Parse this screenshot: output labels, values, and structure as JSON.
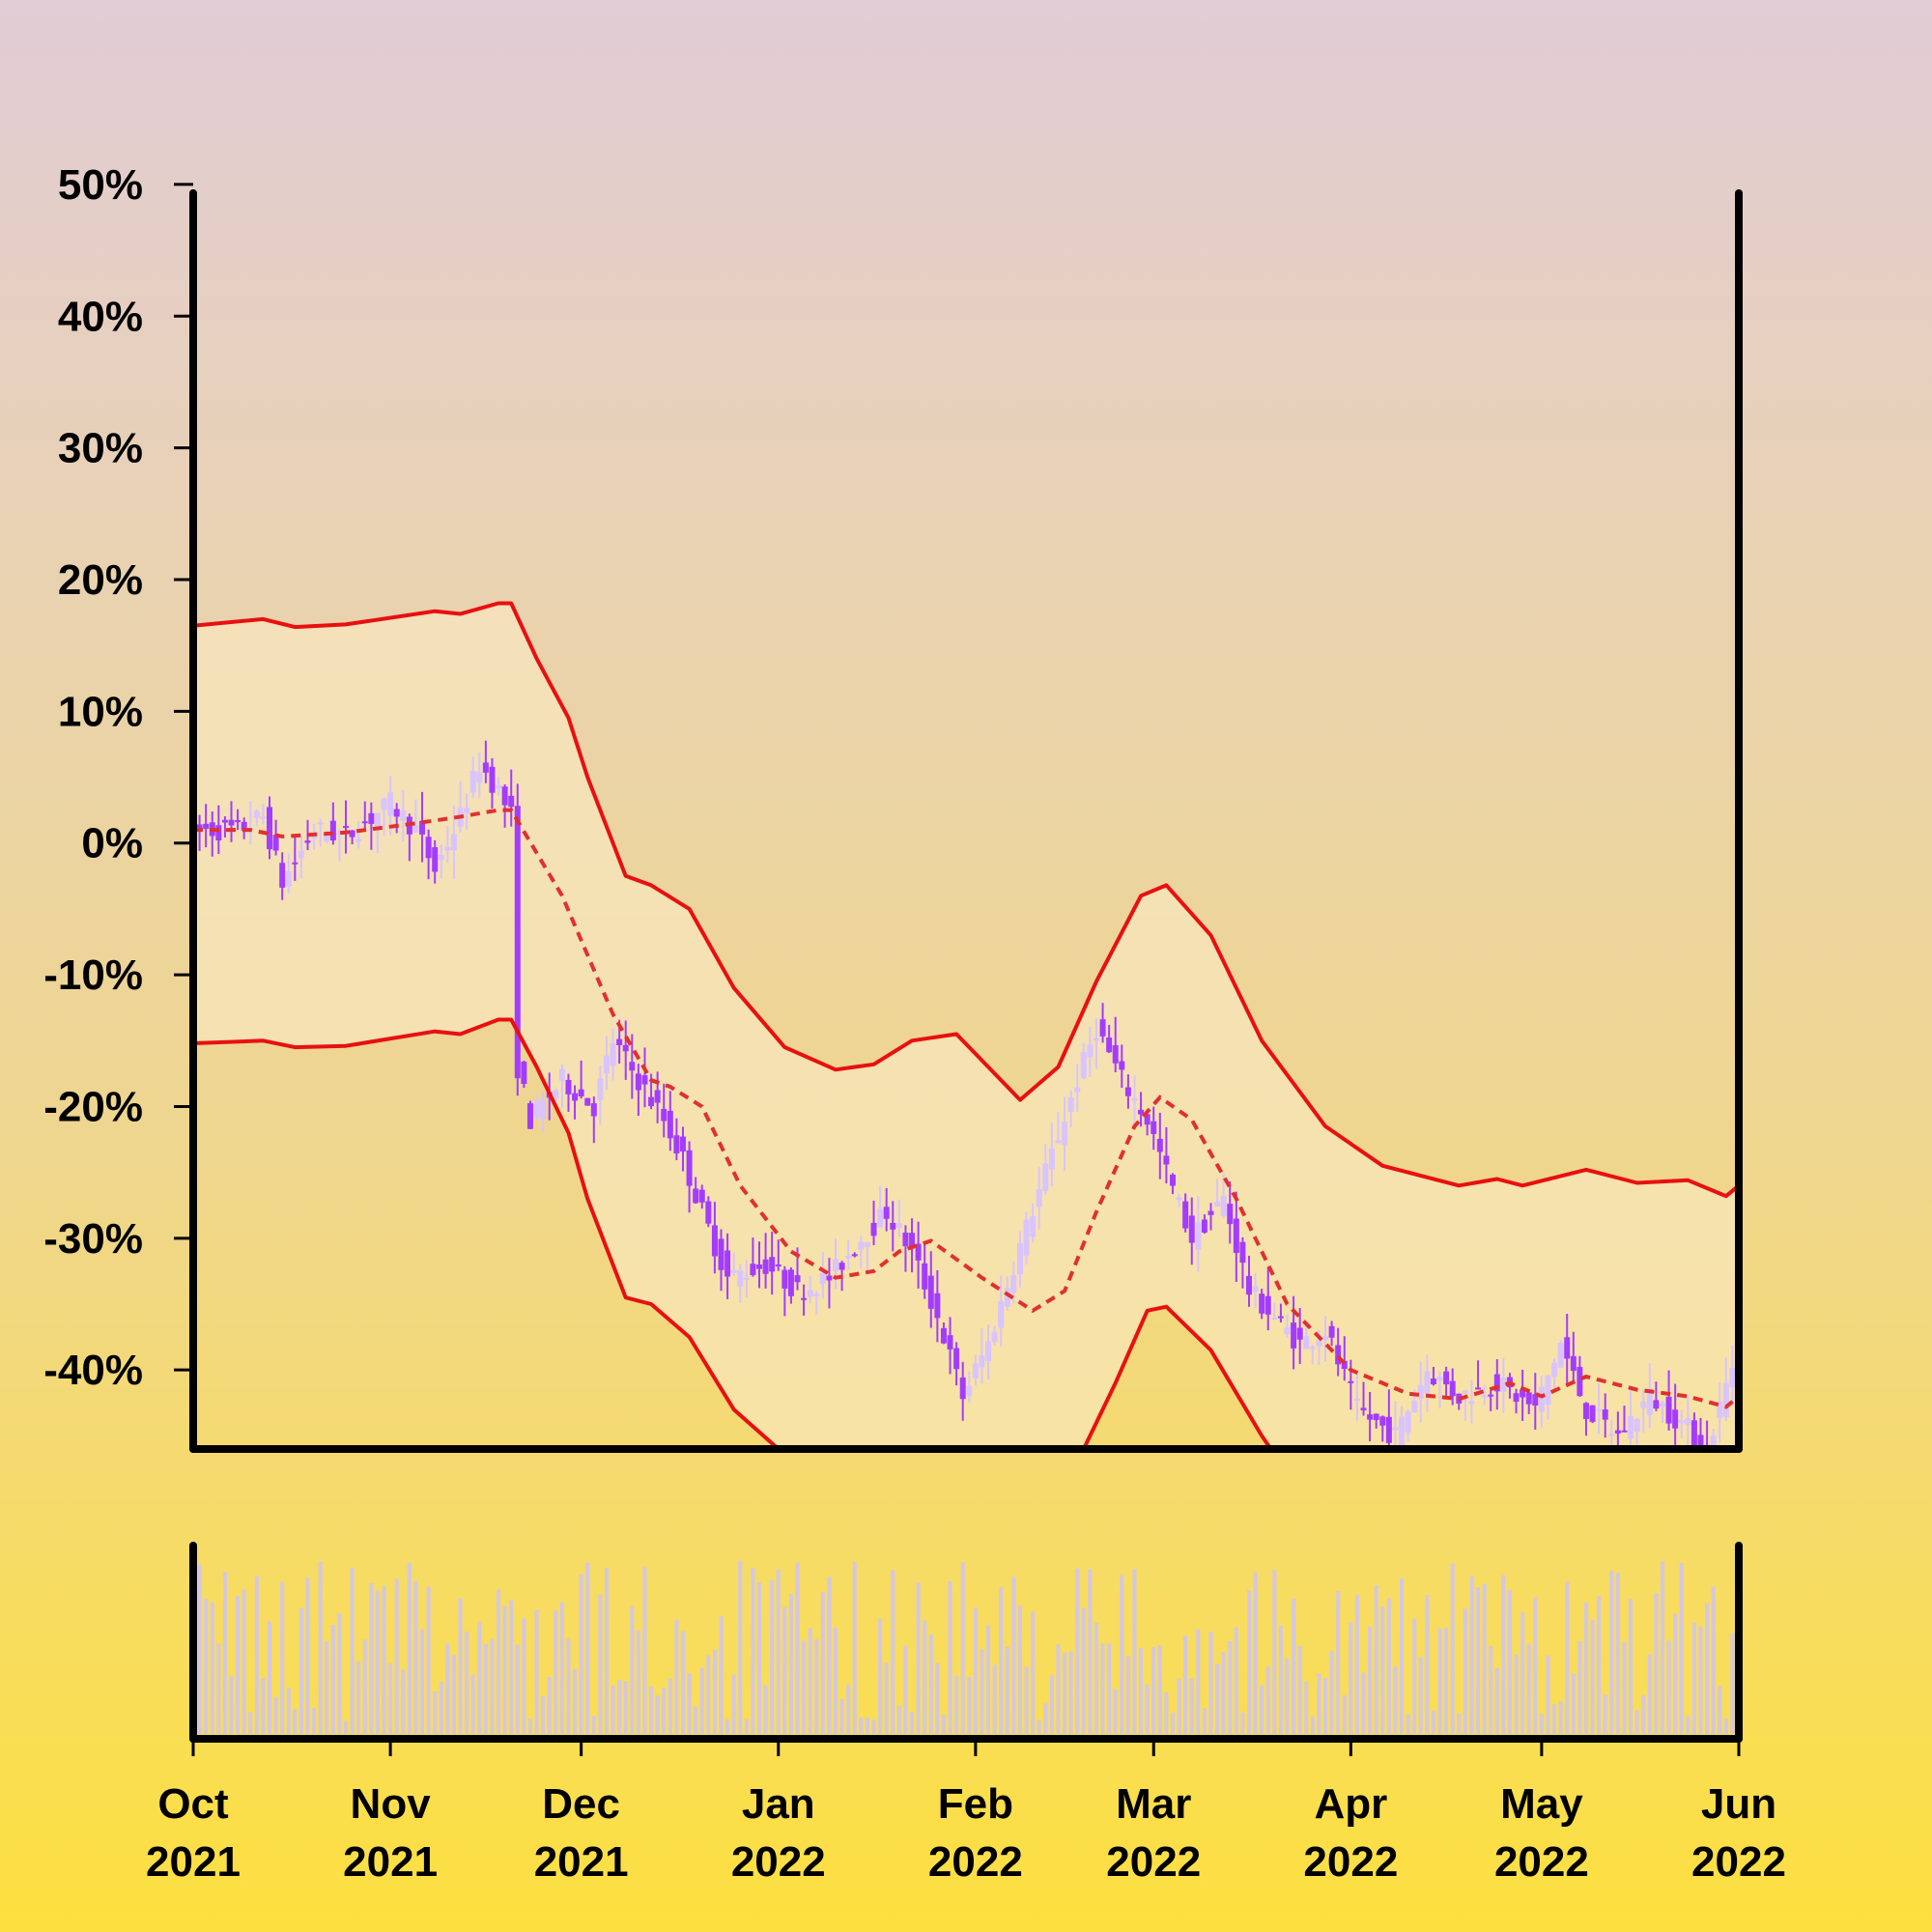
{
  "chart_data": {
    "type": "candlestick",
    "title": "",
    "xlabel": "",
    "ylabel": "",
    "y_unit": "%",
    "ylim": [
      -46,
      53
    ],
    "y_ticks": [
      50,
      40,
      30,
      20,
      10,
      0,
      -10,
      -20,
      -30,
      -40
    ],
    "y_tick_labels": [
      "50%",
      "40%",
      "30%",
      "20%",
      "10%",
      "0%",
      "-10%",
      "-20%",
      "-30%",
      "-40%"
    ],
    "x_range": [
      "2021-10-01",
      "2022-06-01"
    ],
    "x_ticks": [
      "2021-10-01",
      "2021-11-01",
      "2021-12-01",
      "2022-01-01",
      "2022-02-01",
      "2022-03-01",
      "2022-04-01",
      "2022-05-01",
      "2022-06-01"
    ],
    "x_tick_labels": [
      [
        "Oct",
        "2021"
      ],
      [
        "Nov",
        "2021"
      ],
      [
        "Dec",
        "2021"
      ],
      [
        "Jan",
        "2022"
      ],
      [
        "Feb",
        "2022"
      ],
      [
        "Mar",
        "2022"
      ],
      [
        "Apr",
        "2022"
      ],
      [
        "May",
        "2022"
      ],
      [
        "Jun",
        "2022"
      ]
    ],
    "price_path": [
      [
        "2021-10-01",
        1
      ],
      [
        "2021-10-08",
        1
      ],
      [
        "2021-10-12",
        2
      ],
      [
        "2021-10-15",
        -3
      ],
      [
        "2021-10-20",
        1
      ],
      [
        "2021-10-25",
        0.5
      ],
      [
        "2021-11-01",
        3
      ],
      [
        "2021-11-05",
        1
      ],
      [
        "2021-11-08",
        -2
      ],
      [
        "2021-11-12",
        2
      ],
      [
        "2021-11-15",
        6
      ],
      [
        "2021-11-18",
        4
      ],
      [
        "2021-11-20",
        2
      ],
      [
        "2021-11-21",
        -17
      ],
      [
        "2021-11-23",
        -21
      ],
      [
        "2021-11-28",
        -18
      ],
      [
        "2021-12-03",
        -20
      ],
      [
        "2021-12-06",
        -15
      ],
      [
        "2021-12-10",
        -18
      ],
      [
        "2021-12-14",
        -21
      ],
      [
        "2021-12-17",
        -24
      ],
      [
        "2021-12-20",
        -28
      ],
      [
        "2021-12-24",
        -33
      ],
      [
        "2021-12-30",
        -32
      ],
      [
        "2022-01-04",
        -34
      ],
      [
        "2022-01-09",
        -33
      ],
      [
        "2022-01-14",
        -30
      ],
      [
        "2022-01-18",
        -28
      ],
      [
        "2022-01-22",
        -31
      ],
      [
        "2022-01-26",
        -36
      ],
      [
        "2022-01-30",
        -42
      ],
      [
        "2022-02-03",
        -38
      ],
      [
        "2022-02-07",
        -32
      ],
      [
        "2022-02-12",
        -25
      ],
      [
        "2022-02-17",
        -18
      ],
      [
        "2022-02-20",
        -14
      ],
      [
        "2022-02-24",
        -18
      ],
      [
        "2022-02-28",
        -21
      ],
      [
        "2022-03-03",
        -25
      ],
      [
        "2022-03-07",
        -30
      ],
      [
        "2022-03-12",
        -27
      ],
      [
        "2022-03-16",
        -34
      ],
      [
        "2022-03-20",
        -36
      ],
      [
        "2022-03-24",
        -38
      ],
      [
        "2022-03-28",
        -37
      ],
      [
        "2022-04-02",
        -43
      ],
      [
        "2022-04-08",
        -45
      ],
      [
        "2022-04-13",
        -40
      ],
      [
        "2022-04-18",
        -42
      ],
      [
        "2022-04-24",
        -41
      ],
      [
        "2022-04-30",
        -43
      ],
      [
        "2022-05-04",
        -38
      ],
      [
        "2022-05-08",
        -43
      ],
      [
        "2022-05-13",
        -45
      ],
      [
        "2022-05-18",
        -42
      ],
      [
        "2022-05-23",
        -44
      ],
      [
        "2022-05-27",
        -46
      ],
      [
        "2022-06-01",
        -38
      ]
    ],
    "moving_average": [
      [
        "2021-10-01",
        1
      ],
      [
        "2021-10-10",
        1
      ],
      [
        "2021-10-15",
        0.5
      ],
      [
        "2021-10-25",
        0.8
      ],
      [
        "2021-11-05",
        1.5
      ],
      [
        "2021-11-12",
        2
      ],
      [
        "2021-11-18",
        2.5
      ],
      [
        "2021-11-20",
        2.5
      ],
      [
        "2021-11-28",
        -4
      ],
      [
        "2021-12-06",
        -13
      ],
      [
        "2021-12-12",
        -18
      ],
      [
        "2021-12-15",
        -18.5
      ],
      [
        "2021-12-20",
        -20
      ],
      [
        "2021-12-26",
        -26
      ],
      [
        "2022-01-03",
        -31
      ],
      [
        "2022-01-10",
        -33
      ],
      [
        "2022-01-16",
        -32.5
      ],
      [
        "2022-01-20",
        -31
      ],
      [
        "2022-01-25",
        -30.2
      ],
      [
        "2022-02-02",
        -33
      ],
      [
        "2022-02-10",
        -35.5
      ],
      [
        "2022-02-15",
        -34
      ],
      [
        "2022-02-20",
        -28
      ],
      [
        "2022-02-26",
        -21.5
      ],
      [
        "2022-03-02",
        -19.3
      ],
      [
        "2022-03-07",
        -21
      ],
      [
        "2022-03-14",
        -27
      ],
      [
        "2022-03-22",
        -35
      ],
      [
        "2022-04-01",
        -40
      ],
      [
        "2022-04-10",
        -41.8
      ],
      [
        "2022-04-18",
        -42.2
      ],
      [
        "2022-04-26",
        -41
      ],
      [
        "2022-05-01",
        -42
      ],
      [
        "2022-05-08",
        -40.5
      ],
      [
        "2022-05-16",
        -41.5
      ],
      [
        "2022-05-24",
        -42
      ],
      [
        "2022-05-30",
        -42.8
      ],
      [
        "2022-06-01",
        -42
      ]
    ],
    "upper_band": [
      [
        "2021-10-01",
        16.5
      ],
      [
        "2021-10-12",
        17
      ],
      [
        "2021-10-17",
        16.4
      ],
      [
        "2021-10-25",
        16.6
      ],
      [
        "2021-11-08",
        17.6
      ],
      [
        "2021-11-12",
        17.4
      ],
      [
        "2021-11-18",
        18.2
      ],
      [
        "2021-11-20",
        18.2
      ],
      [
        "2021-11-24",
        14
      ],
      [
        "2021-11-29",
        9.5
      ],
      [
        "2021-12-02",
        5
      ],
      [
        "2021-12-08",
        -2.5
      ],
      [
        "2021-12-12",
        -3.2
      ],
      [
        "2021-12-18",
        -5
      ],
      [
        "2021-12-25",
        -11
      ],
      [
        "2022-01-02",
        -15.5
      ],
      [
        "2022-01-10",
        -17.2
      ],
      [
        "2022-01-16",
        -16.8
      ],
      [
        "2022-01-22",
        -15
      ],
      [
        "2022-01-29",
        -14.5
      ],
      [
        "2022-02-08",
        -19.5
      ],
      [
        "2022-02-14",
        -17
      ],
      [
        "2022-02-20",
        -10.5
      ],
      [
        "2022-02-27",
        -4
      ],
      [
        "2022-03-03",
        -3.2
      ],
      [
        "2022-03-10",
        -7
      ],
      [
        "2022-03-18",
        -15
      ],
      [
        "2022-03-28",
        -21.5
      ],
      [
        "2022-04-06",
        -24.5
      ],
      [
        "2022-04-18",
        -26
      ],
      [
        "2022-04-24",
        -25.5
      ],
      [
        "2022-04-28",
        -26
      ],
      [
        "2022-05-08",
        -24.8
      ],
      [
        "2022-05-16",
        -25.8
      ],
      [
        "2022-05-24",
        -25.6
      ],
      [
        "2022-05-30",
        -26.8
      ],
      [
        "2022-06-01",
        -26
      ]
    ],
    "lower_band": [
      [
        "2021-10-01",
        -15.2
      ],
      [
        "2021-10-12",
        -15
      ],
      [
        "2021-10-17",
        -15.5
      ],
      [
        "2021-10-25",
        -15.4
      ],
      [
        "2021-11-08",
        -14.3
      ],
      [
        "2021-11-12",
        -14.5
      ],
      [
        "2021-11-18",
        -13.4
      ],
      [
        "2021-11-20",
        -13.4
      ],
      [
        "2021-11-24",
        -17
      ],
      [
        "2021-11-29",
        -22
      ],
      [
        "2021-12-02",
        -27
      ],
      [
        "2021-12-08",
        -34.5
      ],
      [
        "2021-12-12",
        -35
      ],
      [
        "2021-12-18",
        -37.5
      ],
      [
        "2021-12-25",
        -43
      ],
      [
        "2022-01-01",
        -46
      ],
      [
        "2022-01-20",
        -48
      ],
      [
        "2022-01-29",
        -46.5
      ],
      [
        "2022-02-05",
        -50
      ],
      [
        "2022-02-12",
        -50
      ],
      [
        "2022-02-18",
        -46
      ],
      [
        "2022-02-23",
        -41
      ],
      [
        "2022-02-28",
        -35.5
      ],
      [
        "2022-03-03",
        -35.2
      ],
      [
        "2022-03-10",
        -38.5
      ],
      [
        "2022-03-18",
        -45
      ],
      [
        "2022-03-28",
        -52
      ],
      [
        "2022-06-01",
        -56
      ]
    ],
    "volume": "bars in a lower panel, no axis values shown",
    "series_colors": {
      "up_candle": "#d9c4ff",
      "down_candle": "#a43cff",
      "bands": "#e81010",
      "moving_average": "#e03030",
      "band_fill": "#f9e8c0",
      "volume": "#cfc4f2"
    },
    "grid": false,
    "legend": "none"
  }
}
